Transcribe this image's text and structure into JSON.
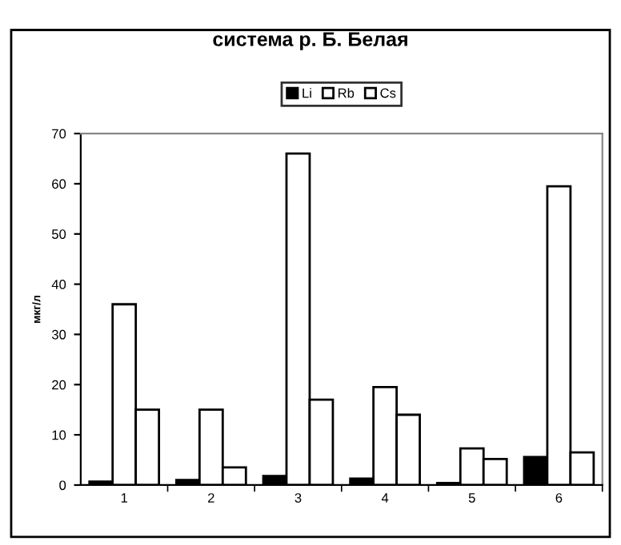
{
  "chart_data": {
    "type": "bar",
    "title": "система р. Б. Белая",
    "ylabel": "мкг/л",
    "categories": [
      "1",
      "2",
      "3",
      "4",
      "5",
      "6"
    ],
    "series": [
      {
        "name": "Li",
        "color": "#000000",
        "values": [
          0.7,
          1.0,
          1.8,
          1.3,
          0.4,
          5.6
        ]
      },
      {
        "name": "Rb",
        "color": "#ffffff",
        "values": [
          36,
          15,
          66,
          19.5,
          7.3,
          59.5
        ]
      },
      {
        "name": "Cs",
        "color": "#ffffff",
        "values": [
          15,
          3.5,
          17,
          14,
          5.2,
          6.5
        ]
      }
    ],
    "ylim": [
      0,
      70
    ],
    "yticks": [
      0,
      10,
      20,
      30,
      40,
      50,
      60,
      70
    ],
    "grid": false,
    "legend": "top"
  }
}
